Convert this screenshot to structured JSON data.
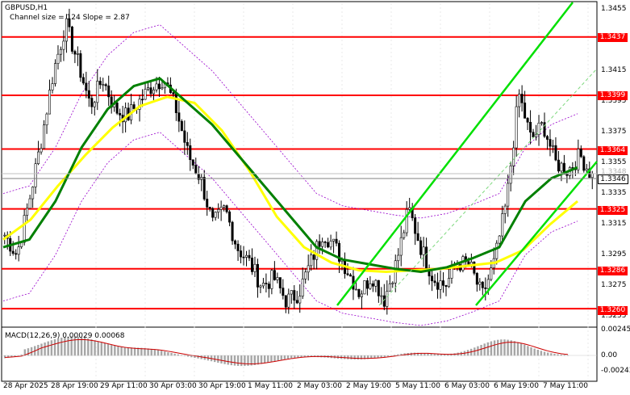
{
  "chart_info": {
    "symbol_title": "GBPUSD,H1",
    "channel_text": "Channel size = 124 Slope = 2.87",
    "macd_label": "MACD(12,26,9) 0.00029 0.00068"
  },
  "levels": [
    "1.3437",
    "1.3399",
    "1.3364",
    "1.3325",
    "1.3286",
    "1.3260"
  ],
  "current_price": "1.3346",
  "current_faint": "1.3348",
  "colors": {
    "level": "#ff0000",
    "sma_fast": "#008000",
    "sma_slow": "#ffff00",
    "channel": "#00e000",
    "envelope": "#9900cc",
    "macd_hist": "#a6a6a6",
    "macd_signal": "#cc0000"
  },
  "chart_data": {
    "type": "candlestick",
    "symbol": "GBPUSD",
    "timeframe": "H1",
    "y_ticks": [
      "1.3455",
      "1.3435",
      "1.3415",
      "1.3395",
      "1.3375",
      "1.3355",
      "1.3335",
      "1.3315",
      "1.3295",
      "1.3275",
      "1.3255"
    ],
    "x_ticks": [
      "28 Apr 2025",
      "28 Apr 19:00",
      "29 Apr 11:00",
      "30 Apr 03:00",
      "30 Apr 19:00",
      "1 May 11:00",
      "2 May 03:00",
      "2 May 19:00",
      "5 May 11:00",
      "6 May 03:00",
      "6 May 19:00",
      "7 May 11:00"
    ],
    "macd_ticks": [
      "0.00245",
      "0.00",
      "-0.00243"
    ],
    "price_range": [
      1.3249,
      1.3459
    ],
    "macd_range": [
      -0.00243,
      0.00245
    ],
    "price_path": [
      1.3308,
      1.3295,
      1.333,
      1.337,
      1.3415,
      1.3445,
      1.342,
      1.3392,
      1.341,
      1.339,
      1.3385,
      1.3395,
      1.3405,
      1.341,
      1.339,
      1.336,
      1.3345,
      1.3315,
      1.3325,
      1.33,
      1.329,
      1.3275,
      1.328,
      1.3265,
      1.327,
      1.329,
      1.331,
      1.33,
      1.3285,
      1.327,
      1.3282,
      1.3266,
      1.329,
      1.3325,
      1.33,
      1.328,
      1.3275,
      1.329,
      1.3288,
      1.3268,
      1.329,
      1.333,
      1.34,
      1.337,
      1.338,
      1.3355,
      1.335,
      1.336,
      1.3346
    ],
    "sma_fast": [
      1.33,
      1.3305,
      1.333,
      1.3365,
      1.339,
      1.3405,
      1.341,
      1.3395,
      1.338,
      1.336,
      1.334,
      1.332,
      1.33,
      1.3292,
      1.3289,
      1.3286,
      1.3284,
      1.3287,
      1.3293,
      1.33,
      1.333,
      1.3345,
      1.3352
    ],
    "sma_slow": [
      1.3305,
      1.3318,
      1.334,
      1.336,
      1.3378,
      1.3392,
      1.3398,
      1.3394,
      1.3376,
      1.335,
      1.332,
      1.33,
      1.329,
      1.3285,
      1.3284,
      1.3285,
      1.3286,
      1.3288,
      1.329,
      1.3298,
      1.3315,
      1.333
    ],
    "channel": [
      {
        "from": [
          1.3255,
          "2 May 03:00"
        ],
        "to": [
          1.3455,
          "7 May 11:00"
        ]
      },
      {
        "from": [
          1.3255,
          "5 May 11:00"
        ],
        "to": [
          1.3355,
          "7 May 11:00"
        ]
      }
    ]
  }
}
